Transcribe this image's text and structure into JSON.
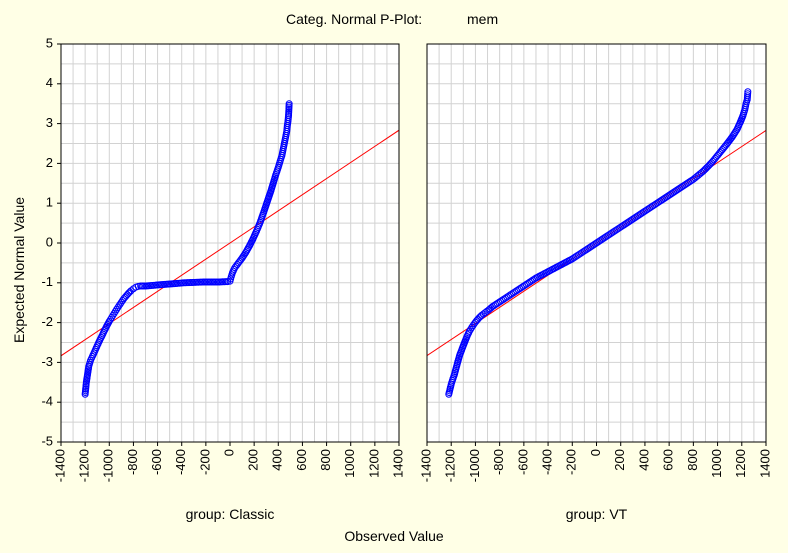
{
  "chart_data": {
    "type": "scatter",
    "title": "Categ. Normal P-Plot:",
    "variable": "mem",
    "xlabel": "Observed Value",
    "ylabel": "Expected Normal Value",
    "xlim": [
      -1400,
      1400
    ],
    "ylim": [
      -5,
      5
    ],
    "x_ticks": [
      "-1400",
      "-1200",
      "-1000",
      "-800",
      "-600",
      "-400",
      "-200",
      "0",
      "200",
      "400",
      "600",
      "800",
      "1000",
      "1200",
      "1400"
    ],
    "y_ticks": [
      "5",
      "4",
      "3",
      "2",
      "1",
      "0",
      "-1",
      "-2",
      "-3",
      "-4",
      "-5"
    ],
    "grid": true,
    "point_color": "#0000ff",
    "line_color": "#ff0000",
    "panels": [
      {
        "label": "group: Classic",
        "reference_line": {
          "slope": 0.002024,
          "intercept": 0.0
        },
        "points": [
          [
            -1200,
            -3.8
          ],
          [
            -1190,
            -3.5
          ],
          [
            -1180,
            -3.3
          ],
          [
            -1170,
            -3.1
          ],
          [
            -1155,
            -2.95
          ],
          [
            -1140,
            -2.85
          ],
          [
            -1120,
            -2.72
          ],
          [
            -1100,
            -2.58
          ],
          [
            -1080,
            -2.45
          ],
          [
            -1060,
            -2.33
          ],
          [
            -1040,
            -2.2
          ],
          [
            -1020,
            -2.08
          ],
          [
            -1000,
            -1.97
          ],
          [
            -980,
            -1.87
          ],
          [
            -960,
            -1.77
          ],
          [
            -940,
            -1.67
          ],
          [
            -920,
            -1.58
          ],
          [
            -900,
            -1.49
          ],
          [
            -880,
            -1.4
          ],
          [
            -860,
            -1.33
          ],
          [
            -840,
            -1.26
          ],
          [
            -820,
            -1.2
          ],
          [
            -800,
            -1.15
          ],
          [
            -780,
            -1.11
          ],
          [
            -760,
            -1.09
          ],
          [
            -740,
            -1.08
          ],
          [
            -700,
            -1.08
          ],
          [
            -660,
            -1.07
          ],
          [
            -620,
            -1.06
          ],
          [
            -580,
            -1.05
          ],
          [
            -540,
            -1.04
          ],
          [
            -500,
            -1.03
          ],
          [
            -460,
            -1.02
          ],
          [
            -420,
            -1.01
          ],
          [
            -380,
            -1.0
          ],
          [
            -340,
            -0.995
          ],
          [
            -300,
            -0.99
          ],
          [
            -260,
            -0.985
          ],
          [
            -220,
            -0.98
          ],
          [
            -180,
            -0.98
          ],
          [
            -140,
            -0.98
          ],
          [
            -100,
            -0.98
          ],
          [
            -60,
            -0.975
          ],
          [
            -20,
            -0.97
          ],
          [
            0,
            -0.96
          ],
          [
            10,
            -0.85
          ],
          [
            20,
            -0.75
          ],
          [
            40,
            -0.62
          ],
          [
            70,
            -0.5
          ],
          [
            100,
            -0.38
          ],
          [
            130,
            -0.24
          ],
          [
            160,
            -0.08
          ],
          [
            190,
            0.1
          ],
          [
            220,
            0.3
          ],
          [
            250,
            0.52
          ],
          [
            280,
            0.78
          ],
          [
            310,
            1.05
          ],
          [
            340,
            1.32
          ],
          [
            360,
            1.52
          ],
          [
            380,
            1.72
          ],
          [
            400,
            1.9
          ],
          [
            415,
            2.05
          ],
          [
            430,
            2.2
          ],
          [
            440,
            2.35
          ],
          [
            450,
            2.5
          ],
          [
            460,
            2.65
          ],
          [
            470,
            2.8
          ],
          [
            475,
            2.95
          ],
          [
            480,
            3.05
          ],
          [
            485,
            3.2
          ],
          [
            490,
            3.5
          ]
        ]
      },
      {
        "label": "group: VT",
        "reference_line": {
          "slope": 0.00202,
          "intercept": 0.0
        },
        "points": [
          [
            -1220,
            -3.8
          ],
          [
            -1200,
            -3.55
          ],
          [
            -1190,
            -3.45
          ],
          [
            -1175,
            -3.32
          ],
          [
            -1160,
            -3.15
          ],
          [
            -1145,
            -2.98
          ],
          [
            -1130,
            -2.82
          ],
          [
            -1110,
            -2.66
          ],
          [
            -1090,
            -2.5
          ],
          [
            -1070,
            -2.35
          ],
          [
            -1050,
            -2.22
          ],
          [
            -1030,
            -2.12
          ],
          [
            -1010,
            -2.03
          ],
          [
            -990,
            -1.95
          ],
          [
            -970,
            -1.88
          ],
          [
            -950,
            -1.82
          ],
          [
            -920,
            -1.75
          ],
          [
            -890,
            -1.68
          ],
          [
            -860,
            -1.6
          ],
          [
            -820,
            -1.52
          ],
          [
            -780,
            -1.44
          ],
          [
            -740,
            -1.36
          ],
          [
            -700,
            -1.28
          ],
          [
            -660,
            -1.2
          ],
          [
            -620,
            -1.12
          ],
          [
            -580,
            -1.04
          ],
          [
            -540,
            -0.96
          ],
          [
            -500,
            -0.88
          ],
          [
            -450,
            -0.8
          ],
          [
            -400,
            -0.72
          ],
          [
            -350,
            -0.64
          ],
          [
            -300,
            -0.56
          ],
          [
            -250,
            -0.48
          ],
          [
            -200,
            -0.4
          ],
          [
            -150,
            -0.3
          ],
          [
            -100,
            -0.2
          ],
          [
            -50,
            -0.1
          ],
          [
            0,
            0.0
          ],
          [
            50,
            0.1
          ],
          [
            100,
            0.2
          ],
          [
            150,
            0.3
          ],
          [
            200,
            0.4
          ],
          [
            250,
            0.5
          ],
          [
            300,
            0.6
          ],
          [
            350,
            0.7
          ],
          [
            400,
            0.8
          ],
          [
            450,
            0.9
          ],
          [
            500,
            1.0
          ],
          [
            550,
            1.1
          ],
          [
            600,
            1.2
          ],
          [
            650,
            1.3
          ],
          [
            700,
            1.4
          ],
          [
            750,
            1.5
          ],
          [
            800,
            1.6
          ],
          [
            840,
            1.7
          ],
          [
            880,
            1.8
          ],
          [
            920,
            1.92
          ],
          [
            960,
            2.05
          ],
          [
            1000,
            2.2
          ],
          [
            1040,
            2.35
          ],
          [
            1080,
            2.5
          ],
          [
            1120,
            2.66
          ],
          [
            1160,
            2.85
          ],
          [
            1190,
            3.05
          ],
          [
            1210,
            3.2
          ],
          [
            1225,
            3.35
          ],
          [
            1235,
            3.5
          ],
          [
            1245,
            3.6
          ],
          [
            1250,
            3.8
          ]
        ]
      }
    ]
  }
}
